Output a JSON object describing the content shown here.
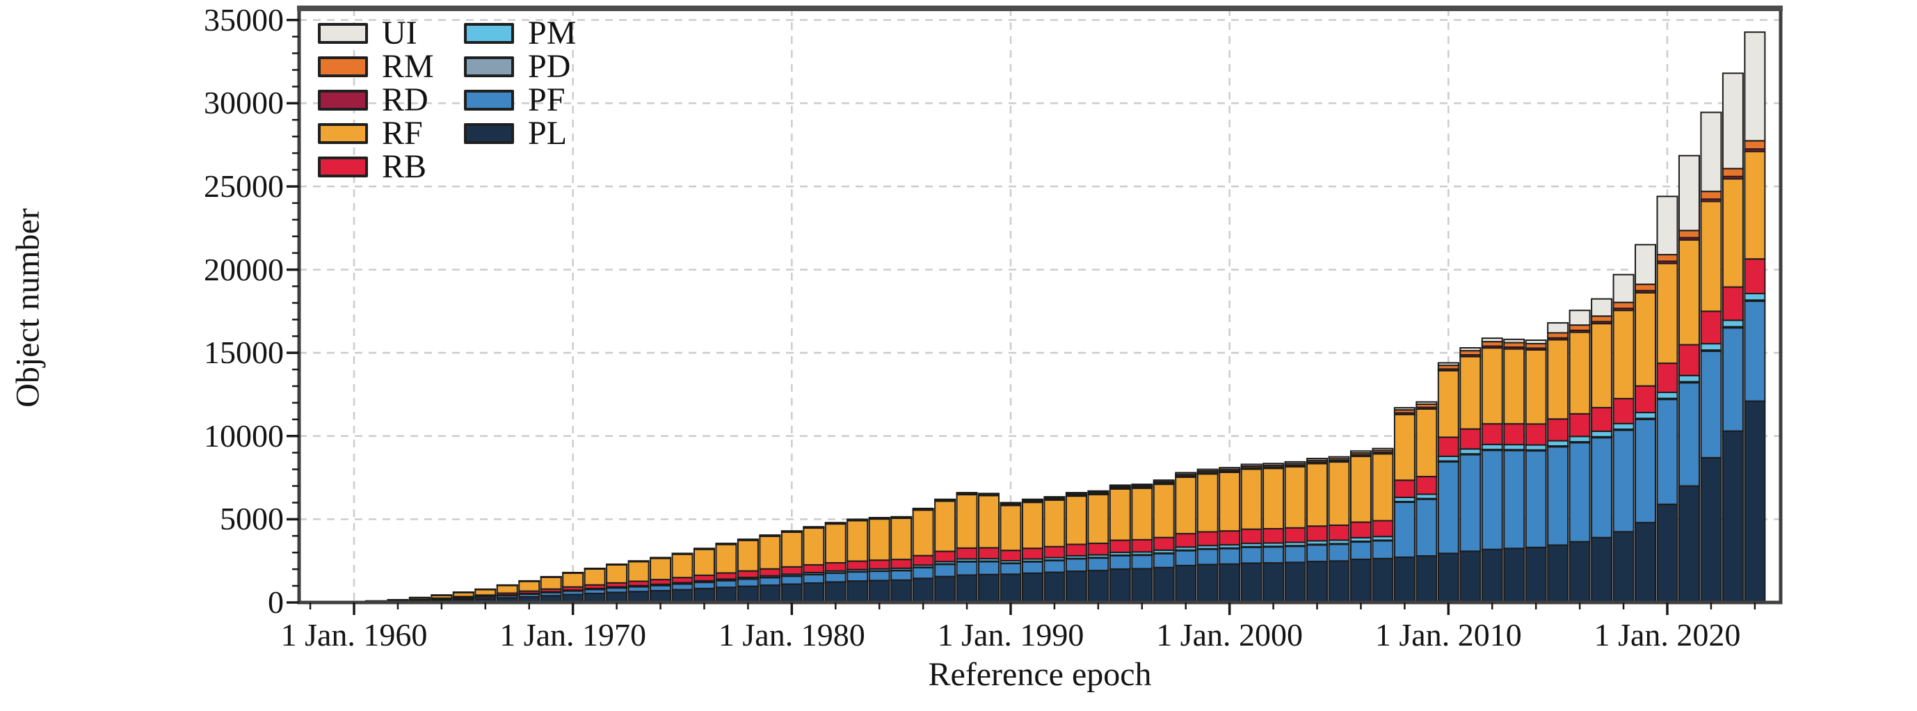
{
  "chart_data": {
    "type": "bar",
    "stacked": true,
    "title": "",
    "xlabel": "Reference epoch",
    "ylabel": "Object number",
    "x_start_year": 1958,
    "x_end_year": 2024,
    "x_unit": "1 Jan. of each year",
    "ylim": [
      0,
      35700
    ],
    "y_ticks": [
      0,
      5000,
      10000,
      15000,
      20000,
      25000,
      30000,
      35000
    ],
    "y_tick_labels": [
      "0",
      "5000",
      "10000",
      "15000",
      "20000",
      "25000",
      "30000",
      "35000"
    ],
    "y_minor_tick_step": 1000,
    "x_ticks": [
      1960,
      1970,
      1980,
      1990,
      2000,
      2010,
      2020
    ],
    "x_tick_labels": [
      "1 Jan. 1960",
      "1 Jan. 1970",
      "1 Jan. 1980",
      "1 Jan. 1990",
      "1 Jan. 2000",
      "1 Jan. 2010",
      "1 Jan. 2020"
    ],
    "x_minor_tick_step_years": 2,
    "grid": "dashed",
    "grid_color": "#cccccc",
    "frame_color": "#3f3f3f",
    "bar_outline_color": "#1b1b1b",
    "legend_position": "top-left-inside",
    "legend_items": [
      {
        "label": "UI",
        "color": "#e7e6e1"
      },
      {
        "label": "RM",
        "color": "#e8752c"
      },
      {
        "label": "RD",
        "color": "#9e1e42"
      },
      {
        "label": "RF",
        "color": "#f0a432"
      },
      {
        "label": "RB",
        "color": "#e0203c"
      },
      {
        "label": "PM",
        "color": "#62c2e5"
      },
      {
        "label": "PD",
        "color": "#879fb2"
      },
      {
        "label": "PF",
        "color": "#3f86c5"
      },
      {
        "label": "PL",
        "color": "#1b3049"
      }
    ],
    "series": [
      {
        "name": "PL",
        "color": "#1b3049",
        "values": [
          4,
          10,
          25,
          40,
          60,
          90,
          130,
          175,
          220,
          280,
          345,
          410,
          480,
          545,
          610,
          660,
          710,
          770,
          840,
          910,
          975,
          1040,
          1105,
          1170,
          1235,
          1290,
          1320,
          1345,
          1450,
          1560,
          1650,
          1680,
          1700,
          1760,
          1815,
          1880,
          1920,
          2010,
          2030,
          2100,
          2220,
          2280,
          2310,
          2365,
          2380,
          2410,
          2465,
          2495,
          2595,
          2640,
          2720,
          2800,
          2950,
          3080,
          3190,
          3250,
          3310,
          3450,
          3650,
          3900,
          4250,
          4800,
          5900,
          7000,
          8700,
          10300,
          12100
        ]
      },
      {
        "name": "PF",
        "color": "#3f86c5",
        "values": [
          0,
          1,
          5,
          10,
          20,
          45,
          70,
          95,
          115,
          140,
          165,
          190,
          215,
          240,
          265,
          285,
          310,
          340,
          370,
          400,
          425,
          450,
          475,
          500,
          525,
          545,
          557,
          565,
          640,
          730,
          790,
          770,
          640,
          680,
          700,
          740,
          750,
          800,
          805,
          835,
          890,
          915,
          925,
          950,
          955,
          965,
          990,
          1000,
          1040,
          1060,
          3300,
          3400,
          5500,
          5800,
          5950,
          5880,
          5800,
          5900,
          5950,
          6000,
          6100,
          6200,
          6300,
          6200,
          6400,
          6200,
          6000
        ]
      },
      {
        "name": "PD",
        "color": "#879fb2",
        "values": [
          0,
          0,
          0,
          1,
          1,
          2,
          3,
          4,
          5,
          6,
          7,
          8,
          9,
          10,
          11,
          12,
          13,
          14,
          15,
          17,
          18,
          19,
          20,
          21,
          22,
          23,
          24,
          24,
          26,
          28,
          30,
          30,
          28,
          29,
          30,
          31,
          32,
          34,
          34,
          35,
          37,
          38,
          39,
          40,
          40,
          41,
          42,
          42,
          44,
          45,
          46,
          47,
          50,
          52,
          54,
          54,
          55,
          56,
          57,
          58,
          60,
          62,
          64,
          66,
          68,
          70,
          72
        ]
      },
      {
        "name": "PM",
        "color": "#62c2e5",
        "values": [
          0,
          0,
          1,
          2,
          3,
          5,
          8,
          12,
          16,
          22,
          28,
          34,
          40,
          46,
          52,
          57,
          62,
          68,
          75,
          82,
          88,
          94,
          100,
          106,
          112,
          117,
          120,
          122,
          130,
          140,
          148,
          150,
          140,
          145,
          150,
          155,
          158,
          165,
          167,
          172,
          182,
          187,
          190,
          194,
          196,
          198,
          203,
          205,
          213,
          217,
          250,
          258,
          280,
          292,
          300,
          300,
          300,
          310,
          320,
          330,
          340,
          350,
          360,
          370,
          380,
          385,
          390
        ]
      },
      {
        "name": "RB",
        "color": "#e0203c",
        "values": [
          1,
          3,
          8,
          12,
          20,
          35,
          50,
          70,
          90,
          115,
          140,
          165,
          190,
          215,
          240,
          260,
          280,
          305,
          335,
          365,
          390,
          415,
          440,
          465,
          490,
          510,
          522,
          530,
          570,
          615,
          650,
          655,
          620,
          640,
          660,
          685,
          695,
          730,
          735,
          760,
          805,
          825,
          835,
          855,
          860,
          870,
          890,
          900,
          935,
          950,
          1030,
          1060,
          1150,
          1200,
          1240,
          1250,
          1260,
          1310,
          1360,
          1420,
          1500,
          1600,
          1750,
          1850,
          1950,
          2000,
          2080
        ]
      },
      {
        "name": "RF",
        "color": "#f0a432",
        "values": [
          0,
          1,
          10,
          23,
          52,
          115,
          178,
          250,
          336,
          465,
          585,
          710,
          830,
          955,
          1080,
          1180,
          1275,
          1400,
          1555,
          1710,
          1835,
          1960,
          2085,
          2210,
          2335,
          2430,
          2470,
          2475,
          2735,
          3015,
          3210,
          3140,
          2700,
          2760,
          2800,
          2900,
          2930,
          3080,
          3095,
          3200,
          3395,
          3480,
          3520,
          3605,
          3625,
          3670,
          3755,
          3800,
          3950,
          4015,
          3950,
          4060,
          4000,
          4350,
          4560,
          4500,
          4450,
          4760,
          4900,
          5050,
          5300,
          5600,
          6000,
          6300,
          6600,
          6500,
          6460
        ]
      },
      {
        "name": "RD",
        "color": "#9e1e42",
        "values": [
          0,
          0,
          0,
          1,
          2,
          4,
          5,
          6,
          8,
          10,
          14,
          17,
          20,
          23,
          25,
          27,
          29,
          31,
          34,
          37,
          40,
          42,
          45,
          47,
          50,
          52,
          53,
          54,
          60,
          66,
          70,
          70,
          62,
          64,
          66,
          68,
          69,
          72,
          73,
          75,
          80,
          82,
          83,
          85,
          86,
          87,
          89,
          90,
          94,
          95,
          96,
          99,
          100,
          104,
          108,
          108,
          108,
          112,
          115,
          118,
          122,
          126,
          130,
          134,
          138,
          142,
          146
        ]
      },
      {
        "name": "RM",
        "color": "#e8752c",
        "values": [
          0,
          0,
          1,
          1,
          2,
          4,
          6,
          8,
          10,
          12,
          16,
          16,
          16,
          16,
          17,
          19,
          21,
          22,
          26,
          29,
          29,
          30,
          30,
          31,
          31,
          33,
          34,
          35,
          39,
          46,
          52,
          55,
          50,
          55,
          59,
          66,
          68,
          76,
          77,
          85,
          96,
          96,
          98,
          101,
          102,
          103,
          106,
          107,
          113,
          112,
          180,
          190,
          220,
          250,
          270,
          270,
          270,
          302,
          318,
          334,
          358,
          382,
          396,
          430,
          464,
          473,
          494
        ]
      },
      {
        "name": "UI",
        "color": "#e7e6e1",
        "values": [
          0,
          0,
          0,
          0,
          0,
          0,
          0,
          0,
          0,
          0,
          0,
          0,
          0,
          0,
          0,
          0,
          0,
          0,
          0,
          0,
          0,
          0,
          0,
          0,
          0,
          0,
          0,
          0,
          0,
          0,
          0,
          0,
          60,
          67,
          70,
          75,
          78,
          83,
          84,
          88,
          95,
          97,
          100,
          105,
          106,
          106,
          110,
          111,
          116,
          116,
          128,
          136,
          150,
          172,
          208,
          198,
          207,
          600,
          880,
          1030,
          1670,
          2380,
          3500,
          4500,
          4750,
          5730,
          6528
        ]
      }
    ]
  }
}
